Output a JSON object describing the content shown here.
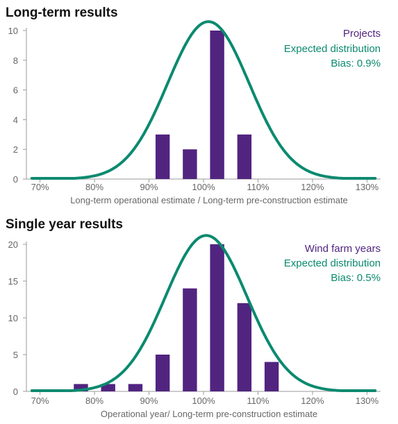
{
  "colors": {
    "bar": "#512480",
    "curve": "#0b8a6f",
    "axis": "#9a9a9a",
    "tick_text": "#666666",
    "legend_bias": "#0b8a6f"
  },
  "chart_data": [
    {
      "type": "bar",
      "title": "Long-term results",
      "xlabel": "Long-term operational estimate / Long-term pre-construction estimate",
      "x_tick_labels": [
        "70%",
        "80%",
        "90%",
        "100%",
        "110%",
        "120%",
        "130%"
      ],
      "x_ticks": [
        70,
        80,
        90,
        100,
        110,
        120,
        130
      ],
      "xlim": [
        67.5,
        132.5
      ],
      "y_ticks": [
        0,
        2,
        4,
        6,
        8,
        10
      ],
      "ylim": [
        0,
        10
      ],
      "categories": [
        92.5,
        97.5,
        102.5,
        107.5
      ],
      "values": [
        3,
        2,
        10,
        3
      ],
      "bin_width": 5,
      "curve": {
        "mean": 100.9,
        "std": 7.5,
        "peak": 10.6
      },
      "legend": [
        "Projects",
        "Expected distribution",
        "Bias: 0.9%"
      ],
      "legend_position": "top-right",
      "grid": false
    },
    {
      "type": "bar",
      "title": "Single year results",
      "xlabel": "Operational year/ Long-term pre-construction estimate",
      "x_tick_labels": [
        "70%",
        "80%",
        "90%",
        "100%",
        "110%",
        "120%",
        "130%"
      ],
      "x_ticks": [
        70,
        80,
        90,
        100,
        110,
        120,
        130
      ],
      "xlim": [
        67.5,
        132.5
      ],
      "y_ticks": [
        0,
        5,
        10,
        15,
        20
      ],
      "ylim": [
        0,
        20
      ],
      "categories": [
        77.5,
        82.5,
        87.5,
        92.5,
        97.5,
        102.5,
        107.5,
        112.5
      ],
      "values": [
        1,
        1,
        1,
        5,
        14,
        20,
        12,
        4
      ],
      "bin_width": 5,
      "curve": {
        "mean": 100.5,
        "std": 7.5,
        "peak": 21.2
      },
      "legend": [
        "Wind farm years",
        "Expected distribution",
        "Bias: 0.5%"
      ],
      "legend_position": "top-right",
      "grid": false
    }
  ]
}
